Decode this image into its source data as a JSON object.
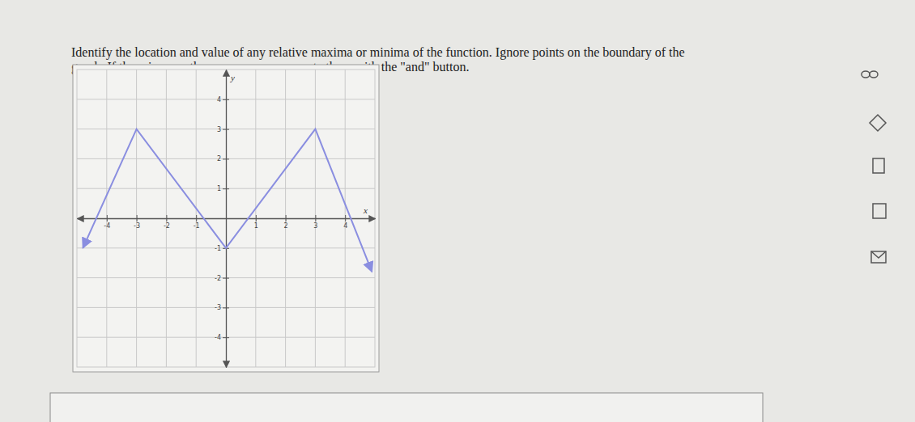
{
  "chart_data": {
    "type": "line",
    "title": [
      "Identify the location and value of any relative maxima or minima of the function. Ignore points on the boundary of the",
      "graph. If there is more than one answer, separate them with the \"and\" button."
    ],
    "x_label": "x",
    "y_label": "y",
    "x": [
      -4.8,
      -3,
      0,
      3,
      4.9
    ],
    "values": [
      -1,
      3,
      -1,
      3,
      -1.8
    ],
    "color": "#8a8ee0",
    "marker": "arrow",
    "xlim": [
      -5,
      5
    ],
    "ylim": [
      -5,
      5
    ],
    "xticks": [
      -4,
      -3,
      -2,
      -1,
      1,
      2,
      3,
      4
    ],
    "yticks": [
      -4,
      -3,
      -2,
      -1,
      1,
      2,
      3,
      4
    ],
    "grid": true
  }
}
